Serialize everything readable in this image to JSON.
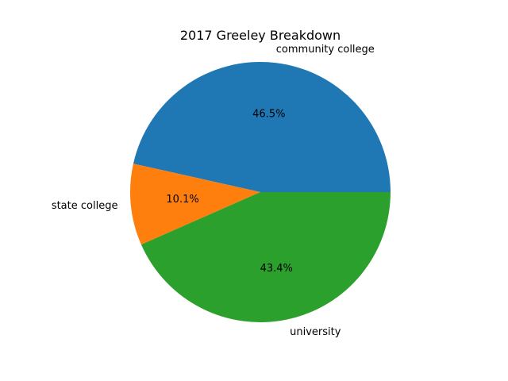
{
  "chart_data": {
    "type": "pie",
    "title": "2017 Greeley Breakdown",
    "slices": [
      {
        "label": "community college",
        "value": 46.5,
        "pct_label": "46.5%",
        "color": "#1f77b4"
      },
      {
        "label": "state college",
        "value": 10.1,
        "pct_label": "10.1%",
        "color": "#ff7f0e"
      },
      {
        "label": "university",
        "value": 43.4,
        "pct_label": "43.4%",
        "color": "#2ca02c"
      }
    ],
    "start_angle_deg": 0,
    "direction": "counterclockwise",
    "legend": "none"
  }
}
